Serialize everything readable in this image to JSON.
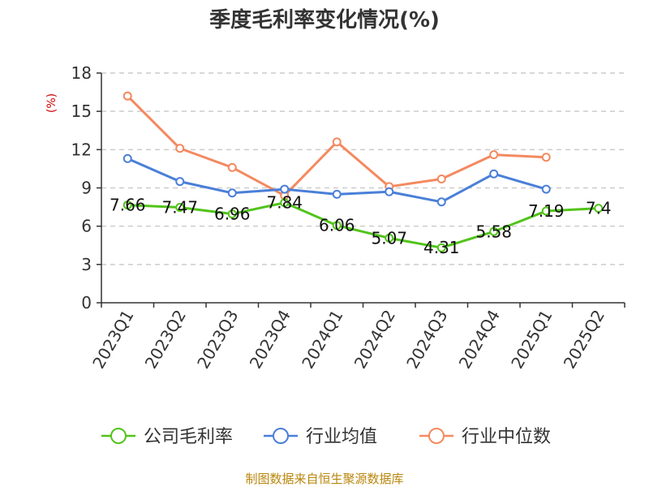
{
  "chart_data": {
    "type": "line",
    "title": "季度毛利率变化情况(%)",
    "ylabel": "(%)",
    "categories": [
      "2023Q1",
      "2023Q2",
      "2023Q3",
      "2023Q4",
      "2024Q1",
      "2024Q2",
      "2024Q3",
      "2024Q4",
      "2025Q1",
      "2025Q2"
    ],
    "ylim": [
      0,
      18
    ],
    "yticks": [
      0,
      3,
      6,
      9,
      12,
      15,
      18
    ],
    "grid": true,
    "legend_position": "bottom",
    "series": [
      {
        "name": "公司毛利率",
        "color": "#52c41a",
        "values": [
          7.66,
          7.47,
          6.96,
          7.84,
          6.06,
          5.07,
          4.31,
          5.58,
          7.19,
          7.4
        ],
        "labels": [
          "7.66",
          "7.47",
          "6.96",
          "7.84",
          "6.06",
          "5.07",
          "4.31",
          "5.58",
          "7.19",
          "7.4"
        ]
      },
      {
        "name": "行业均值",
        "color": "#4a7fd8",
        "values": [
          11.3,
          9.5,
          8.6,
          8.9,
          8.5,
          8.7,
          7.9,
          10.1,
          8.9,
          null
        ]
      },
      {
        "name": "行业中位数",
        "color": "#f4895f",
        "values": [
          16.2,
          12.1,
          10.6,
          8.4,
          12.6,
          9.1,
          9.7,
          11.6,
          11.4,
          null
        ]
      }
    ],
    "source": "制图数据来自恒生聚源数据库"
  }
}
